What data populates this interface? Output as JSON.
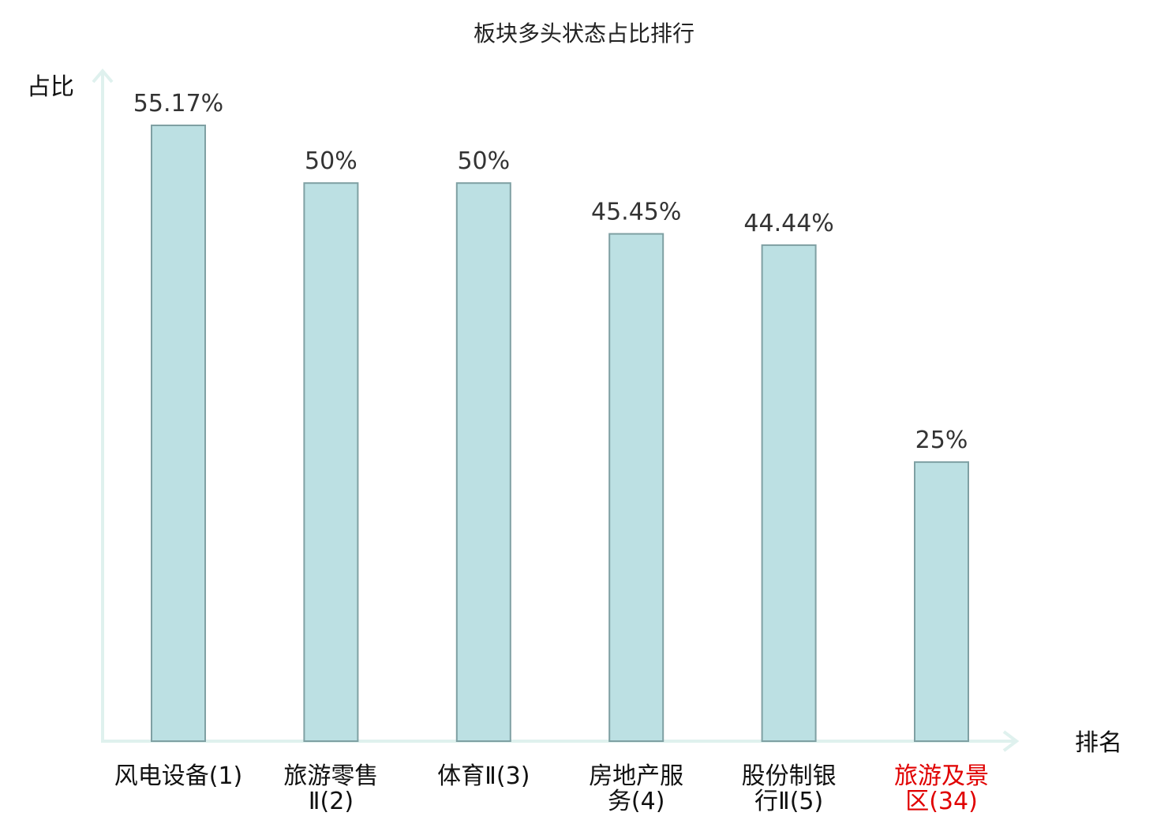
{
  "chart_data": {
    "type": "bar",
    "title": "板块多头状态占比排行",
    "ylabel": "占比",
    "xlabel": "排名",
    "categories": [
      [
        "风电设备(1)"
      ],
      [
        "旅游零售",
        "Ⅱ(2)"
      ],
      [
        "体育Ⅱ(3)"
      ],
      [
        "房地产服",
        "务(4)"
      ],
      [
        "股份制银",
        "行Ⅱ(5)"
      ],
      [
        "旅游及景",
        "区(34)"
      ]
    ],
    "values": [
      55.17,
      50,
      50,
      45.45,
      44.44,
      25
    ],
    "value_labels": [
      "55.17%",
      "50%",
      "50%",
      "45.45%",
      "44.44%",
      "25%"
    ],
    "highlight_index": 5,
    "ylim": [
      0,
      55.17
    ],
    "grid": false,
    "colors": {
      "bar_fill": "#bce0e3",
      "bar_stroke": "#7fa0a3",
      "axis": "#dff1ee",
      "highlight_text": "#e00000"
    }
  }
}
